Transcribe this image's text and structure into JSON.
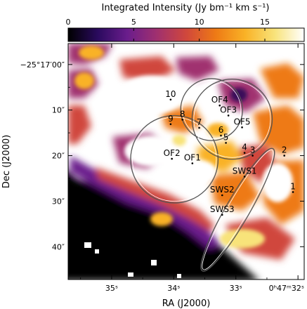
{
  "chart_data": {
    "type": "heatmap",
    "colorbar": {
      "title": "Integrated Intensity (Jy bm⁻¹ km s⁻¹)",
      "range": [
        0,
        18
      ],
      "ticks": [
        {
          "value": 0,
          "label": "0"
        },
        {
          "value": 5,
          "label": "5"
        },
        {
          "value": 10,
          "label": "10"
        },
        {
          "value": 15,
          "label": "15"
        }
      ],
      "colors": [
        "#000000",
        "#2a0a5e",
        "#6a1d8c",
        "#a0306f",
        "#d0473c",
        "#ee7a15",
        "#f9b226",
        "#f8e37a",
        "#ffffff"
      ]
    },
    "xlabel": "RA (J2000)",
    "ylabel": "Dec (J2000)",
    "x_ticks": [
      {
        "value": 35,
        "label": "35ˢ"
      },
      {
        "value": 34,
        "label": "34ˢ"
      },
      {
        "value": 33,
        "label": "33ˢ"
      },
      {
        "value": 32,
        "label": "0ʰ47ᵐ32ˢ"
      }
    ],
    "y_ticks": [
      {
        "value": 0,
        "label": "−25°17′00″"
      },
      {
        "value": 10,
        "label": "10″"
      },
      {
        "value": 20,
        "label": "20″"
      },
      {
        "value": 30,
        "label": "30″"
      },
      {
        "value": 40,
        "label": "40″"
      }
    ],
    "xlim": [
      35.7,
      31.9
    ],
    "ylim": [
      -4.6,
      47.2
    ],
    "sources": [
      {
        "label": "10",
        "ra": 34.05,
        "dec": 7.7
      },
      {
        "label": "9",
        "ra": 34.05,
        "dec": 13.1
      },
      {
        "label": "8",
        "ra": 33.86,
        "dec": 12.1
      },
      {
        "label": "7",
        "ra": 33.59,
        "dec": 13.9
      },
      {
        "label": "6",
        "ra": 33.24,
        "dec": 15.6
      },
      {
        "label": "5",
        "ra": 33.16,
        "dec": 17.2
      },
      {
        "label": "4",
        "ra": 32.86,
        "dec": 19.4
      },
      {
        "label": "3",
        "ra": 32.73,
        "dec": 20.0
      },
      {
        "label": "2",
        "ra": 32.22,
        "dec": 20.0
      },
      {
        "label": "1",
        "ra": 32.08,
        "dec": 28.0
      },
      {
        "label": "OF4",
        "ra": 33.26,
        "dec": 9.0
      },
      {
        "label": "OF3",
        "ra": 33.12,
        "dec": 11.2
      },
      {
        "label": "OF5",
        "ra": 32.9,
        "dec": 13.8
      },
      {
        "label": "OF2",
        "ra": 34.03,
        "dec": 20.7
      },
      {
        "label": "OF1",
        "ra": 33.7,
        "dec": 21.7
      },
      {
        "label": "SWS1",
        "ra": 32.86,
        "dec": 24.6
      },
      {
        "label": "SWS2",
        "ra": 33.22,
        "dec": 28.7
      },
      {
        "label": "SWS3",
        "ra": 33.22,
        "dec": 33.0
      }
    ],
    "beams": [
      {
        "shape": "circle",
        "ra": 33.99,
        "dec": 20.8,
        "radius_arcsec": 9.6
      },
      {
        "shape": "circle",
        "ra": 33.39,
        "dec": 9.9,
        "radius_arcsec": 6.8
      },
      {
        "shape": "circle",
        "ra": 33.06,
        "dec": 12.0,
        "radius_arcsec": 8.8
      },
      {
        "shape": "ellipse",
        "ra": 32.97,
        "dec": 31.9,
        "semi_major_arcsec": 15.5,
        "semi_minor_arcsec": 2.6,
        "position_angle_deg": 30
      }
    ],
    "grid": false,
    "legend": "none"
  }
}
